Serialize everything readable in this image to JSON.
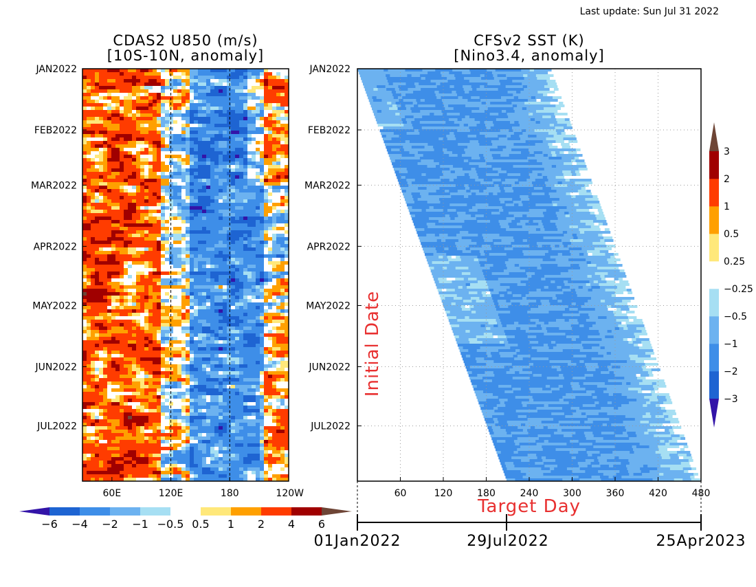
{
  "header": {
    "last_update": "Last update: Sun Jul 31 2022"
  },
  "left_panel": {
    "title_line1": "CDAS2 U850 (m/s)",
    "title_line2": "[10S-10N, anomaly]"
  },
  "right_panel": {
    "title_line1": "CFSv2 SST (K)",
    "title_line2": "[Nino3.4, anomaly]",
    "ylabel": "Initial Date",
    "xlabel": "Target Day"
  },
  "timeline": {
    "labels": [
      "01Jan2022",
      "29Jul2022",
      "25Apr2023"
    ]
  },
  "colors": {
    "neg": [
      "#3314a8",
      "#1e64d2",
      "#3e8ee8",
      "#6cb2f0",
      "#a6dff3"
    ],
    "zero": "#ffffff",
    "pos": [
      "#ffe87a",
      "#ffa000",
      "#ff3c00",
      "#a00000",
      "#6e4536"
    ],
    "grid": "#9a9a9a"
  },
  "chart_data": [
    {
      "type": "heatmap",
      "title": "CDAS2 U850 (m/s)",
      "subtitle": "[10S-10N, anomaly]",
      "x_tick_labels": [
        "60E",
        "120E",
        "180",
        "120W"
      ],
      "x_ticks_deg": [
        60,
        120,
        180,
        240
      ],
      "x_range_deg": [
        30,
        240
      ],
      "y_tick_labels": [
        "JAN2022",
        "FEB2022",
        "MAR2022",
        "APR2022",
        "MAY2022",
        "JUN2022",
        "JUL2022"
      ],
      "y_ticks_day": [
        0,
        31,
        59,
        90,
        120,
        151,
        181
      ],
      "y_range_day": [
        0,
        209
      ],
      "colorbar": {
        "orientation": "horizontal",
        "levels": [
          -6,
          -4,
          -2,
          -1,
          -0.5,
          0.5,
          1,
          2,
          4,
          6
        ],
        "tick_labels": [
          "−6",
          "−4",
          "−2",
          "−1",
          "−0.5",
          "0.5",
          "1",
          "2",
          "4",
          "6"
        ]
      }
    },
    {
      "type": "heatmap",
      "title": "CFSv2 SST (K)",
      "subtitle": "[Nino3.4, anomaly]",
      "xlabel": "Target Day",
      "ylabel": "Initial Date",
      "x_tick_labels": [
        "60",
        "120",
        "180",
        "240",
        "300",
        "360",
        "420",
        "480"
      ],
      "x_ticks": [
        60,
        120,
        180,
        240,
        300,
        360,
        420,
        480
      ],
      "x_range": [
        0,
        480
      ],
      "y_tick_labels": [
        "JAN2022",
        "FEB2022",
        "MAR2022",
        "APR2022",
        "MAY2022",
        "JUN2022",
        "JUL2022"
      ],
      "y_ticks_day": [
        0,
        31,
        59,
        90,
        120,
        151,
        181
      ],
      "y_range_day": [
        0,
        209
      ],
      "forecast_lead_days": 270,
      "grid": "dotted",
      "colorbar": {
        "orientation": "vertical",
        "levels": [
          -3,
          -2,
          -1,
          -0.5,
          -0.25,
          0.25,
          0.5,
          1,
          2,
          3
        ],
        "tick_labels": [
          "−3",
          "−2",
          "−1",
          "−0.5",
          "−0.25",
          "0.25",
          "0.5",
          "1",
          "2",
          "3"
        ]
      }
    }
  ]
}
